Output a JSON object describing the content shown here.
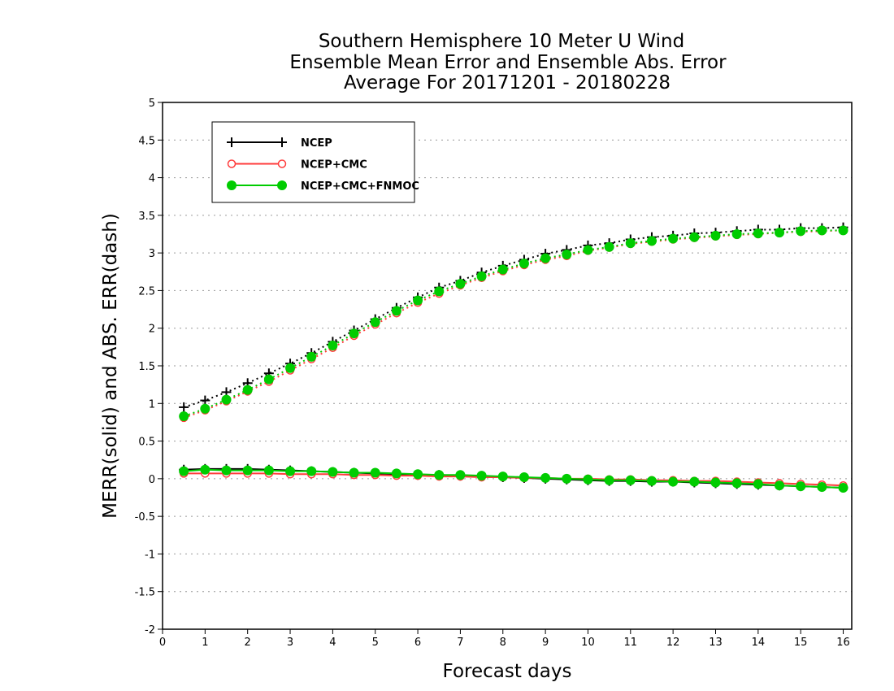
{
  "chart_data": {
    "type": "line",
    "title": [
      "Southern Hemisphere 10 Meter U Wind",
      "Ensemble Mean Error and Ensemble Abs. Error",
      "Average For 20171201 - 20180228"
    ],
    "xlabel": "Forecast days",
    "ylabel": "MERR(solid) and ABS. ERR(dash)",
    "xlim": [
      0,
      16.2
    ],
    "ylim": [
      -2,
      5
    ],
    "xticks": [
      0,
      1,
      2,
      3,
      4,
      5,
      6,
      7,
      8,
      9,
      10,
      11,
      12,
      13,
      14,
      15,
      16
    ],
    "yticks": [
      -2,
      -1.5,
      -1,
      -0.5,
      0,
      0.5,
      1,
      1.5,
      2,
      2.5,
      3,
      3.5,
      4,
      4.5,
      5
    ],
    "ytick_labels": [
      "-2",
      "-1.5",
      "-1",
      "-0.5",
      "0",
      "0.5",
      "1",
      "1.5",
      "2",
      "2.5",
      "3",
      "3.5",
      "4",
      "4.5",
      "5"
    ],
    "grid": "horizontal dotted",
    "legend_position": "top-left",
    "x": [
      0.5,
      1,
      1.5,
      2,
      2.5,
      3,
      3.5,
      4,
      4.5,
      5,
      5.5,
      6,
      6.5,
      7,
      7.5,
      8,
      8.5,
      9,
      9.5,
      10,
      10.5,
      11,
      11.5,
      12,
      12.5,
      13,
      13.5,
      14,
      14.5,
      15,
      15.5,
      16
    ],
    "series": [
      {
        "name": "NCEP",
        "color": "#000000",
        "marker": "plus",
        "mean_error": [
          0.12,
          0.13,
          0.13,
          0.13,
          0.12,
          0.11,
          0.1,
          0.09,
          0.08,
          0.07,
          0.06,
          0.05,
          0.05,
          0.04,
          0.03,
          0.02,
          0.01,
          0.0,
          -0.01,
          -0.02,
          -0.03,
          -0.03,
          -0.04,
          -0.04,
          -0.05,
          -0.06,
          -0.07,
          -0.08,
          -0.09,
          -0.1,
          -0.11,
          -0.12
        ],
        "abs_error": [
          0.95,
          1.04,
          1.15,
          1.27,
          1.4,
          1.53,
          1.67,
          1.82,
          1.97,
          2.12,
          2.27,
          2.41,
          2.54,
          2.63,
          2.74,
          2.83,
          2.91,
          2.99,
          3.04,
          3.1,
          3.13,
          3.18,
          3.21,
          3.23,
          3.26,
          3.27,
          3.29,
          3.31,
          3.31,
          3.33,
          3.33,
          3.34
        ]
      },
      {
        "name": "NCEP+CMC",
        "color": "#ff3b3b",
        "marker": "open-circle",
        "mean_error": [
          0.07,
          0.07,
          0.07,
          0.07,
          0.07,
          0.06,
          0.06,
          0.06,
          0.05,
          0.05,
          0.04,
          0.04,
          0.03,
          0.03,
          0.02,
          0.02,
          0.01,
          0.01,
          0.0,
          0.0,
          -0.01,
          -0.01,
          -0.02,
          -0.02,
          -0.03,
          -0.03,
          -0.04,
          -0.05,
          -0.06,
          -0.07,
          -0.08,
          -0.09
        ],
        "abs_error": [
          0.81,
          0.91,
          1.03,
          1.16,
          1.29,
          1.44,
          1.59,
          1.74,
          1.9,
          2.05,
          2.2,
          2.34,
          2.46,
          2.57,
          2.67,
          2.76,
          2.84,
          2.91,
          2.96,
          3.03,
          3.07,
          3.12,
          3.15,
          3.18,
          3.2,
          3.22,
          3.24,
          3.25,
          3.27,
          3.28,
          3.29,
          3.3
        ]
      },
      {
        "name": "NCEP+CMC+FNMOC",
        "color": "#00cc00",
        "marker": "filled-circle",
        "mean_error": [
          0.1,
          0.12,
          0.11,
          0.11,
          0.11,
          0.1,
          0.1,
          0.09,
          0.08,
          0.08,
          0.07,
          0.06,
          0.05,
          0.05,
          0.04,
          0.03,
          0.02,
          0.01,
          0.0,
          -0.01,
          -0.02,
          -0.02,
          -0.03,
          -0.04,
          -0.04,
          -0.05,
          -0.06,
          -0.07,
          -0.09,
          -0.1,
          -0.11,
          -0.12
        ],
        "abs_error": [
          0.83,
          0.93,
          1.05,
          1.18,
          1.32,
          1.47,
          1.62,
          1.77,
          1.93,
          2.08,
          2.23,
          2.37,
          2.49,
          2.59,
          2.69,
          2.78,
          2.86,
          2.93,
          2.98,
          3.04,
          3.08,
          3.13,
          3.16,
          3.19,
          3.21,
          3.23,
          3.25,
          3.26,
          3.27,
          3.29,
          3.3,
          3.3
        ]
      }
    ]
  }
}
